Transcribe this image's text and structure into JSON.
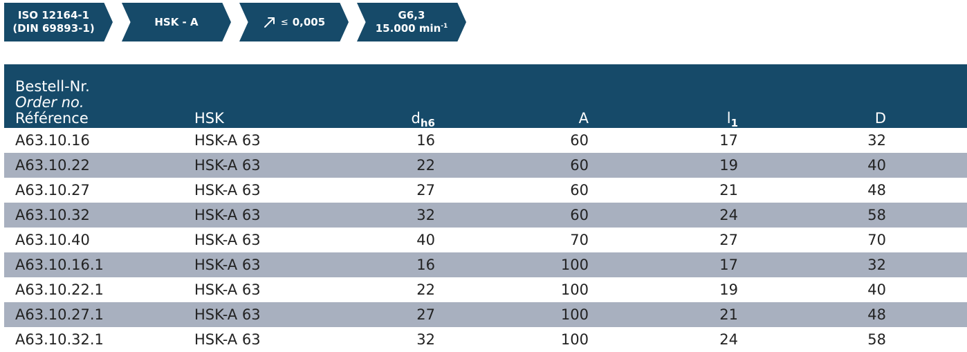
{
  "badges": {
    "iso_line1": "ISO 12164-1",
    "iso_line2": "(DIN 69893-1)",
    "hsk": "HSK - A",
    "runout_symbol": "≤",
    "runout_value": "0,005",
    "balance_grade": "G6,3",
    "speed": "15.000 min",
    "speed_exp": "-1",
    "icons": [
      "runout-arrow-icon"
    ],
    "color": "#164a69"
  },
  "table": {
    "header": {
      "ref_de": "Bestell-Nr.",
      "ref_en": "Order no.",
      "ref_fr": "Référence",
      "hsk": "HSK",
      "d_main": "d",
      "d_sub": "h6",
      "a": "A",
      "l_main": "l",
      "l_sub": "1",
      "d_outer": "D"
    },
    "rows": [
      {
        "ref": "A63.10.16",
        "hsk": "HSK-A 63",
        "d": "16",
        "a": "60",
        "l1": "17",
        "D": "32"
      },
      {
        "ref": "A63.10.22",
        "hsk": "HSK-A 63",
        "d": "22",
        "a": "60",
        "l1": "19",
        "D": "40"
      },
      {
        "ref": "A63.10.27",
        "hsk": "HSK-A 63",
        "d": "27",
        "a": "60",
        "l1": "21",
        "D": "48"
      },
      {
        "ref": "A63.10.32",
        "hsk": "HSK-A 63",
        "d": "32",
        "a": "60",
        "l1": "24",
        "D": "58"
      },
      {
        "ref": "A63.10.40",
        "hsk": "HSK-A 63",
        "d": "40",
        "a": "70",
        "l1": "27",
        "D": "70"
      },
      {
        "ref": "A63.10.16.1",
        "hsk": "HSK-A 63",
        "d": "16",
        "a": "100",
        "l1": "17",
        "D": "32"
      },
      {
        "ref": "A63.10.22.1",
        "hsk": "HSK-A 63",
        "d": "22",
        "a": "100",
        "l1": "19",
        "D": "40"
      },
      {
        "ref": "A63.10.27.1",
        "hsk": "HSK-A 63",
        "d": "27",
        "a": "100",
        "l1": "21",
        "D": "48"
      },
      {
        "ref": "A63.10.32.1",
        "hsk": "HSK-A 63",
        "d": "32",
        "a": "100",
        "l1": "24",
        "D": "58"
      }
    ],
    "header_color": "#164a69",
    "stripe_color": "#a8b0bf"
  }
}
